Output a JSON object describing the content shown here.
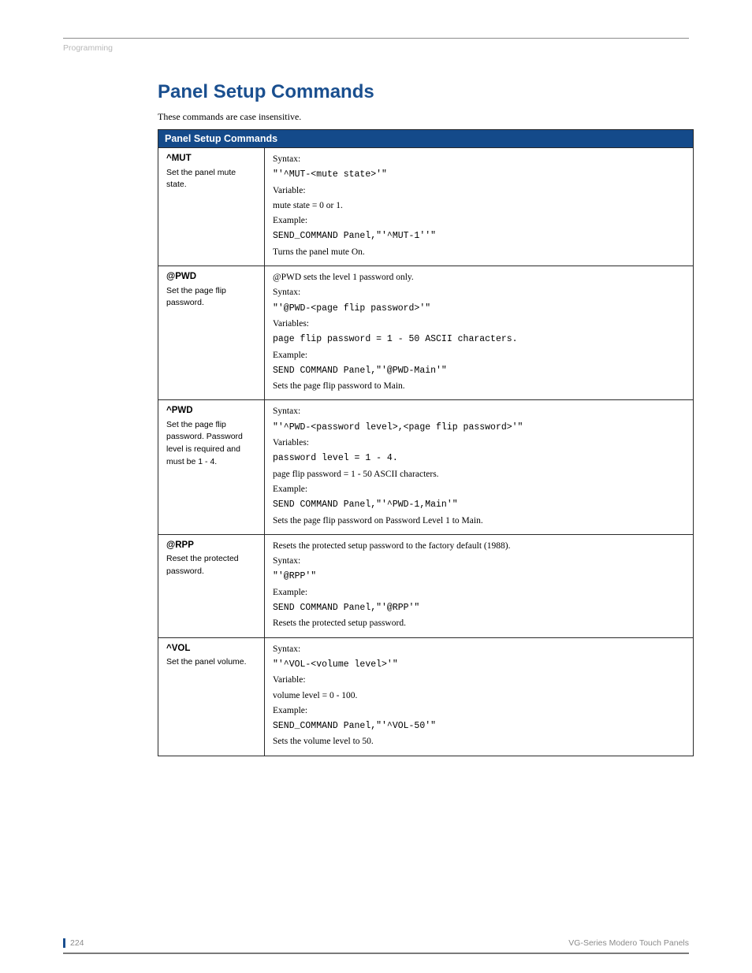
{
  "breadcrumb": "Programming",
  "heading": "Panel Setup Commands",
  "intro": "These commands are case insensitive.",
  "table": {
    "caption": "Panel Setup Commands",
    "rows": [
      {
        "name": "^MUT",
        "desc": "Set the panel mute state.",
        "syntax_label": "Syntax:",
        "syntax": "\"'^MUT-<mute state>'\"",
        "variable_label": "Variable:",
        "variable": "mute state = 0 or 1.",
        "example_label": "Example:",
        "example": "SEND_COMMAND Panel,\"'^MUT-1''\"",
        "result": "Turns the panel mute On."
      },
      {
        "name": "@PWD",
        "desc": "Set the page flip password.",
        "note": "@PWD sets the level 1 password only.",
        "syntax_label": "Syntax:",
        "syntax": "\"'@PWD-<page flip password>'\"",
        "variable_label": "Variables:",
        "variable": "page flip password = 1 - 50 ASCII characters.",
        "example_label": "Example:",
        "example": "SEND COMMAND Panel,\"'@PWD-Main'\"",
        "result": "Sets the page flip password to Main."
      },
      {
        "name": "^PWD",
        "desc": "Set the page flip password. Password level is required and must be 1 - 4.",
        "syntax_label": "Syntax:",
        "syntax": "\"'^PWD-<password level>,<page flip password>'\"",
        "variable_label": "Variables:",
        "variable1": "password level = 1 - 4.",
        "variable2": "page flip password = 1 - 50 ASCII characters.",
        "example_label": "Example:",
        "example": "SEND COMMAND Panel,\"'^PWD-1,Main'\"",
        "result": "Sets the page flip password on Password Level 1 to Main."
      },
      {
        "name": "@RPP",
        "desc": "Reset the protected password.",
        "note": "Resets the protected setup password to the factory default (1988).",
        "syntax_label": "Syntax:",
        "syntax": "\"'@RPP'\"",
        "example_label": "Example:",
        "example": "SEND COMMAND Panel,\"'@RPP'\"",
        "result": "Resets the protected setup password."
      },
      {
        "name": "^VOL",
        "desc": "Set the panel volume.",
        "syntax_label": "Syntax:",
        "syntax": "\"'^VOL-<volume level>'\"",
        "variable_label": "Variable:",
        "variable": "volume level = 0 - 100.",
        "example_label": "Example:",
        "example": "SEND_COMMAND Panel,\"'^VOL-50'\"",
        "result": "Sets the volume level to 50."
      }
    ]
  },
  "footer": {
    "page": "224",
    "doc": "VG-Series Modero Touch Panels"
  }
}
